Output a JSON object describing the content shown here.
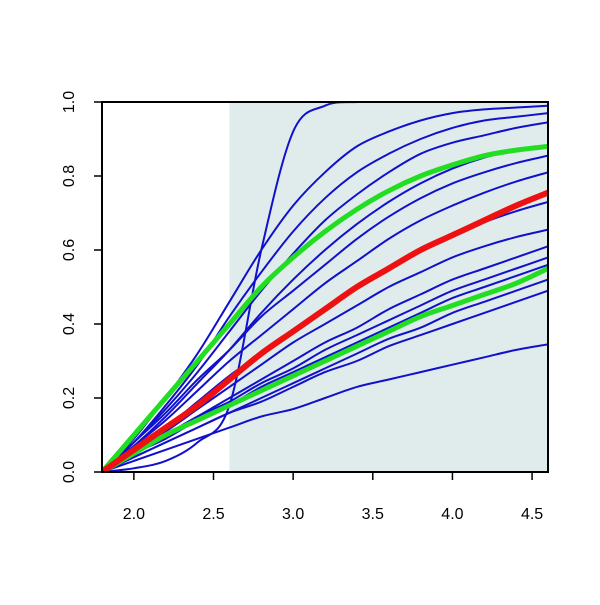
{
  "chart_data": {
    "type": "line",
    "title": "",
    "xlabel": "",
    "ylabel": "",
    "xlim": [
      1.8,
      4.6
    ],
    "ylim": [
      0,
      1
    ],
    "x_ticks": [
      "2.0",
      "2.5",
      "3.0",
      "3.5",
      "4.0",
      "4.5"
    ],
    "y_ticks": [
      "0.0",
      "0.2",
      "0.4",
      "0.6",
      "0.8",
      "1.0"
    ],
    "grid": false,
    "legend": "none",
    "shaded_region": {
      "x_from": 2.6,
      "x_to": 4.6,
      "color": "#e0ecec"
    },
    "x": [
      1.8,
      2.0,
      2.2,
      2.4,
      2.6,
      2.8,
      3.0,
      3.2,
      3.4,
      3.6,
      3.8,
      4.0,
      4.2,
      4.4,
      4.6
    ],
    "series": [
      {
        "color": "#1111cc",
        "width": 2,
        "values": [
          0,
          0.01,
          0.03,
          0.08,
          0.18,
          0.6,
          0.92,
          0.99,
          1.0,
          1.0,
          1.0,
          1.0,
          1.0,
          1.0,
          1.0
        ]
      },
      {
        "color": "#1111cc",
        "width": 2,
        "values": [
          0,
          0.09,
          0.2,
          0.32,
          0.46,
          0.6,
          0.72,
          0.81,
          0.88,
          0.92,
          0.95,
          0.97,
          0.98,
          0.985,
          0.99
        ]
      },
      {
        "color": "#1111cc",
        "width": 2,
        "values": [
          0,
          0.08,
          0.18,
          0.29,
          0.42,
          0.54,
          0.65,
          0.74,
          0.81,
          0.86,
          0.9,
          0.93,
          0.95,
          0.96,
          0.97
        ]
      },
      {
        "color": "#1111cc",
        "width": 2,
        "values": [
          0,
          0.08,
          0.17,
          0.27,
          0.38,
          0.49,
          0.59,
          0.68,
          0.75,
          0.81,
          0.86,
          0.89,
          0.91,
          0.93,
          0.945
        ]
      },
      {
        "color": "#1111cc",
        "width": 2,
        "values": [
          0,
          0.07,
          0.15,
          0.24,
          0.33,
          0.43,
          0.52,
          0.6,
          0.67,
          0.73,
          0.78,
          0.82,
          0.85,
          0.87,
          0.88
        ]
      },
      {
        "color": "#1111cc",
        "width": 2,
        "values": [
          0,
          0.08,
          0.16,
          0.25,
          0.33,
          0.42,
          0.49,
          0.56,
          0.63,
          0.69,
          0.74,
          0.78,
          0.81,
          0.835,
          0.855
        ]
      },
      {
        "color": "#1111cc",
        "width": 2,
        "values": [
          0,
          0.07,
          0.14,
          0.22,
          0.3,
          0.37,
          0.44,
          0.51,
          0.57,
          0.63,
          0.68,
          0.72,
          0.755,
          0.785,
          0.81
        ]
      },
      {
        "color": "#1111cc",
        "width": 2,
        "values": [
          0,
          0.06,
          0.12,
          0.19,
          0.26,
          0.32,
          0.38,
          0.44,
          0.5,
          0.55,
          0.6,
          0.64,
          0.675,
          0.705,
          0.73
        ]
      },
      {
        "color": "#1111cc",
        "width": 2,
        "values": [
          0,
          0.06,
          0.11,
          0.17,
          0.23,
          0.29,
          0.35,
          0.4,
          0.45,
          0.5,
          0.54,
          0.58,
          0.61,
          0.635,
          0.655
        ]
      },
      {
        "color": "#1111cc",
        "width": 2,
        "values": [
          0,
          0.05,
          0.1,
          0.15,
          0.2,
          0.25,
          0.3,
          0.35,
          0.39,
          0.44,
          0.48,
          0.52,
          0.55,
          0.58,
          0.61
        ]
      },
      {
        "color": "#1111cc",
        "width": 2,
        "values": [
          0,
          0.05,
          0.1,
          0.15,
          0.19,
          0.24,
          0.28,
          0.33,
          0.37,
          0.41,
          0.45,
          0.49,
          0.52,
          0.55,
          0.58
        ]
      },
      {
        "color": "#1111cc",
        "width": 2,
        "values": [
          0,
          0.05,
          0.09,
          0.14,
          0.18,
          0.23,
          0.27,
          0.31,
          0.35,
          0.39,
          0.43,
          0.47,
          0.5,
          0.53,
          0.56
        ]
      },
      {
        "color": "#1111cc",
        "width": 2,
        "values": [
          0,
          0.04,
          0.08,
          0.12,
          0.16,
          0.2,
          0.24,
          0.28,
          0.32,
          0.36,
          0.39,
          0.43,
          0.46,
          0.49,
          0.52
        ]
      },
      {
        "color": "#1111cc",
        "width": 2,
        "values": [
          0,
          0.04,
          0.08,
          0.12,
          0.16,
          0.19,
          0.23,
          0.27,
          0.3,
          0.34,
          0.37,
          0.4,
          0.43,
          0.46,
          0.49
        ]
      },
      {
        "color": "#1111cc",
        "width": 2,
        "values": [
          0,
          0.03,
          0.06,
          0.09,
          0.12,
          0.15,
          0.17,
          0.2,
          0.23,
          0.25,
          0.27,
          0.29,
          0.31,
          0.33,
          0.345
        ]
      },
      {
        "color": "#22dd22",
        "width": 5,
        "values": [
          0,
          0.1,
          0.2,
          0.3,
          0.4,
          0.5,
          0.58,
          0.65,
          0.71,
          0.76,
          0.8,
          0.83,
          0.855,
          0.87,
          0.88
        ]
      },
      {
        "color": "#22dd22",
        "width": 5,
        "values": [
          0,
          0.05,
          0.1,
          0.14,
          0.18,
          0.22,
          0.26,
          0.3,
          0.34,
          0.38,
          0.42,
          0.45,
          0.48,
          0.51,
          0.55
        ]
      },
      {
        "color": "#ee1111",
        "width": 6,
        "values": [
          0,
          0.06,
          0.12,
          0.18,
          0.25,
          0.32,
          0.38,
          0.44,
          0.5,
          0.55,
          0.6,
          0.64,
          0.68,
          0.72,
          0.755
        ]
      }
    ]
  }
}
